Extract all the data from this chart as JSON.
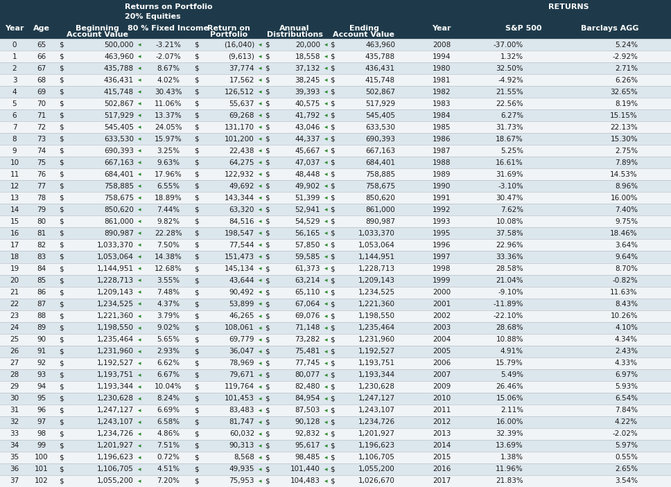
{
  "header_bg": "#1e3a4a",
  "header_text_color": "#ffffff",
  "row_odd_bg": "#dce6ed",
  "row_even_bg": "#f0f4f7",
  "cell_text_color": "#1a1a1a",
  "green_arrow_color": "#2a8a2a",
  "rows": [
    [
      0,
      65,
      500000,
      "-3.21%",
      -16040,
      20000,
      463960,
      2008,
      "-37.00%",
      "5.24%"
    ],
    [
      1,
      66,
      463960,
      "-2.07%",
      -9613,
      18558,
      435788,
      1994,
      "1.32%",
      "-2.92%"
    ],
    [
      2,
      67,
      435788,
      "8.67%",
      37774,
      37132,
      436431,
      1980,
      "32.50%",
      "2.71%"
    ],
    [
      3,
      68,
      436431,
      "4.02%",
      17562,
      38245,
      415748,
      1981,
      "-4.92%",
      "6.26%"
    ],
    [
      4,
      69,
      415748,
      "30.43%",
      126512,
      39393,
      502867,
      1982,
      "21.55%",
      "32.65%"
    ],
    [
      5,
      70,
      502867,
      "11.06%",
      55637,
      40575,
      517929,
      1983,
      "22.56%",
      "8.19%"
    ],
    [
      6,
      71,
      517929,
      "13.37%",
      69268,
      41792,
      545405,
      1984,
      "6.27%",
      "15.15%"
    ],
    [
      7,
      72,
      545405,
      "24.05%",
      131170,
      43046,
      633530,
      1985,
      "31.73%",
      "22.13%"
    ],
    [
      8,
      73,
      633530,
      "15.97%",
      101200,
      44337,
      690393,
      1986,
      "18.67%",
      "15.30%"
    ],
    [
      9,
      74,
      690393,
      "3.25%",
      22438,
      45667,
      667163,
      1987,
      "5.25%",
      "2.75%"
    ],
    [
      10,
      75,
      667163,
      "9.63%",
      64275,
      47037,
      684401,
      1988,
      "16.61%",
      "7.89%"
    ],
    [
      11,
      76,
      684401,
      "17.96%",
      122932,
      48448,
      758885,
      1989,
      "31.69%",
      "14.53%"
    ],
    [
      12,
      77,
      758885,
      "6.55%",
      49692,
      49902,
      758675,
      1990,
      "-3.10%",
      "8.96%"
    ],
    [
      13,
      78,
      758675,
      "18.89%",
      143344,
      51399,
      850620,
      1991,
      "30.47%",
      "16.00%"
    ],
    [
      14,
      79,
      850620,
      "7.44%",
      63320,
      52941,
      861000,
      1992,
      "7.62%",
      "7.40%"
    ],
    [
      15,
      80,
      861000,
      "9.82%",
      84516,
      54529,
      890987,
      1993,
      "10.08%",
      "9.75%"
    ],
    [
      16,
      81,
      890987,
      "22.28%",
      198547,
      56165,
      1033370,
      1995,
      "37.58%",
      "18.46%"
    ],
    [
      17,
      82,
      1033370,
      "7.50%",
      77544,
      57850,
      1053064,
      1996,
      "22.96%",
      "3.64%"
    ],
    [
      18,
      83,
      1053064,
      "14.38%",
      151473,
      59585,
      1144951,
      1997,
      "33.36%",
      "9.64%"
    ],
    [
      19,
      84,
      1144951,
      "12.68%",
      145134,
      61373,
      1228713,
      1998,
      "28.58%",
      "8.70%"
    ],
    [
      20,
      85,
      1228713,
      "3.55%",
      43644,
      63214,
      1209143,
      1999,
      "21.04%",
      "-0.82%"
    ],
    [
      21,
      86,
      1209143,
      "7.48%",
      90492,
      65110,
      1234525,
      2000,
      "-9.10%",
      "11.63%"
    ],
    [
      22,
      87,
      1234525,
      "4.37%",
      53899,
      67064,
      1221360,
      2001,
      "-11.89%",
      "8.43%"
    ],
    [
      23,
      88,
      1221360,
      "3.79%",
      46265,
      69076,
      1198550,
      2002,
      "-22.10%",
      "10.26%"
    ],
    [
      24,
      89,
      1198550,
      "9.02%",
      108061,
      71148,
      1235464,
      2003,
      "28.68%",
      "4.10%"
    ],
    [
      25,
      90,
      1235464,
      "5.65%",
      69779,
      73282,
      1231960,
      2004,
      "10.88%",
      "4.34%"
    ],
    [
      26,
      91,
      1231960,
      "2.93%",
      36047,
      75481,
      1192527,
      2005,
      "4.91%",
      "2.43%"
    ],
    [
      27,
      92,
      1192527,
      "6.62%",
      78969,
      77745,
      1193751,
      2006,
      "15.79%",
      "4.33%"
    ],
    [
      28,
      93,
      1193751,
      "6.67%",
      79671,
      80077,
      1193344,
      2007,
      "5.49%",
      "6.97%"
    ],
    [
      29,
      94,
      1193344,
      "10.04%",
      119764,
      82480,
      1230628,
      2009,
      "26.46%",
      "5.93%"
    ],
    [
      30,
      95,
      1230628,
      "8.24%",
      101453,
      84954,
      1247127,
      2010,
      "15.06%",
      "6.54%"
    ],
    [
      31,
      96,
      1247127,
      "6.69%",
      83483,
      87503,
      1243107,
      2011,
      "2.11%",
      "7.84%"
    ],
    [
      32,
      97,
      1243107,
      "6.58%",
      81747,
      90128,
      1234726,
      2012,
      "16.00%",
      "4.22%"
    ],
    [
      33,
      98,
      1234726,
      "4.86%",
      60032,
      92832,
      1201927,
      2013,
      "32.39%",
      "-2.02%"
    ],
    [
      34,
      99,
      1201927,
      "7.51%",
      90313,
      95617,
      1196623,
      2014,
      "13.69%",
      "5.97%"
    ],
    [
      35,
      100,
      1196623,
      "0.72%",
      8568,
      98485,
      1106705,
      2015,
      "1.38%",
      "0.55%"
    ],
    [
      36,
      101,
      1106705,
      "4.51%",
      49935,
      101440,
      1055200,
      2016,
      "11.96%",
      "2.65%"
    ],
    [
      37,
      102,
      1055200,
      "7.20%",
      75953,
      104483,
      1026670,
      2017,
      "21.83%",
      "3.54%"
    ]
  ]
}
